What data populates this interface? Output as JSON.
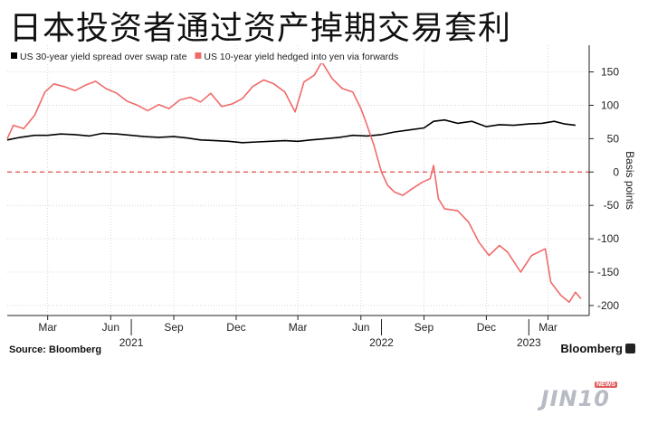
{
  "headline": "日本投资者通过资产掉期交易套利",
  "source": "Source: Bloomberg",
  "brand": "Bloomberg",
  "watermark": {
    "text": "JIN10",
    "tag": "NEWS"
  },
  "chart_data": {
    "type": "line",
    "ylabel": "Basis points",
    "ylim": [
      -215,
      190
    ],
    "yticks": [
      150,
      100,
      50,
      0,
      -50,
      -100,
      -150,
      -200
    ],
    "xlim": [
      "2021-01-01",
      "2023-04-30"
    ],
    "x_month_ticks": [
      {
        "label": "Mar",
        "date": "2021-03-01"
      },
      {
        "label": "Jun",
        "date": "2021-06-01"
      },
      {
        "label": "Sep",
        "date": "2021-09-01"
      },
      {
        "label": "Dec",
        "date": "2021-12-01"
      },
      {
        "label": "Mar",
        "date": "2022-03-01"
      },
      {
        "label": "Jun",
        "date": "2022-06-01"
      },
      {
        "label": "Sep",
        "date": "2022-09-01"
      },
      {
        "label": "Dec",
        "date": "2022-12-01"
      },
      {
        "label": "Mar",
        "date": "2023-03-01"
      }
    ],
    "x_year_ticks": [
      {
        "label": "2021",
        "date": "2021-07-01"
      },
      {
        "label": "2022",
        "date": "2022-07-01"
      },
      {
        "label": "2023",
        "date": "2023-02-01"
      }
    ],
    "reference_line": {
      "y": 0,
      "color": "#e05050",
      "style": "dashed"
    },
    "grid": true,
    "legend_position": "top-left",
    "series": [
      {
        "name": "US 30-year yield spread over swap rate",
        "color": "#000000",
        "points": [
          [
            "2021-01-01",
            48
          ],
          [
            "2021-01-20",
            52
          ],
          [
            "2021-02-10",
            55
          ],
          [
            "2021-03-01",
            55
          ],
          [
            "2021-03-20",
            57
          ],
          [
            "2021-04-10",
            56
          ],
          [
            "2021-05-01",
            54
          ],
          [
            "2021-05-20",
            58
          ],
          [
            "2021-06-10",
            57
          ],
          [
            "2021-07-01",
            55
          ],
          [
            "2021-07-20",
            53
          ],
          [
            "2021-08-10",
            52
          ],
          [
            "2021-09-01",
            53
          ],
          [
            "2021-09-20",
            51
          ],
          [
            "2021-10-10",
            48
          ],
          [
            "2021-11-01",
            47
          ],
          [
            "2021-11-20",
            46
          ],
          [
            "2021-12-10",
            44
          ],
          [
            "2022-01-01",
            45
          ],
          [
            "2022-01-20",
            46
          ],
          [
            "2022-02-10",
            47
          ],
          [
            "2022-03-01",
            46
          ],
          [
            "2022-03-20",
            48
          ],
          [
            "2022-04-10",
            50
          ],
          [
            "2022-05-01",
            52
          ],
          [
            "2022-05-20",
            55
          ],
          [
            "2022-06-10",
            54
          ],
          [
            "2022-07-01",
            56
          ],
          [
            "2022-07-20",
            60
          ],
          [
            "2022-08-10",
            63
          ],
          [
            "2022-09-01",
            66
          ],
          [
            "2022-09-15",
            76
          ],
          [
            "2022-10-01",
            78
          ],
          [
            "2022-10-20",
            73
          ],
          [
            "2022-11-10",
            76
          ],
          [
            "2022-12-01",
            68
          ],
          [
            "2022-12-20",
            71
          ],
          [
            "2023-01-10",
            70
          ],
          [
            "2023-02-01",
            72
          ],
          [
            "2023-02-20",
            73
          ],
          [
            "2023-03-10",
            76
          ],
          [
            "2023-03-25",
            72
          ],
          [
            "2023-04-10",
            70
          ]
        ]
      },
      {
        "name": "US 10-year yield hedged into yen via forwards",
        "color": "#f06a6a",
        "points": [
          [
            "2021-01-01",
            50
          ],
          [
            "2021-01-10",
            70
          ],
          [
            "2021-01-25",
            65
          ],
          [
            "2021-02-10",
            85
          ],
          [
            "2021-02-25",
            120
          ],
          [
            "2021-03-10",
            132
          ],
          [
            "2021-03-25",
            128
          ],
          [
            "2021-04-10",
            122
          ],
          [
            "2021-04-25",
            130
          ],
          [
            "2021-05-10",
            136
          ],
          [
            "2021-05-25",
            125
          ],
          [
            "2021-06-10",
            118
          ],
          [
            "2021-06-25",
            106
          ],
          [
            "2021-07-10",
            100
          ],
          [
            "2021-07-25",
            92
          ],
          [
            "2021-08-10",
            101
          ],
          [
            "2021-08-25",
            95
          ],
          [
            "2021-09-10",
            108
          ],
          [
            "2021-09-25",
            112
          ],
          [
            "2021-10-10",
            105
          ],
          [
            "2021-10-25",
            118
          ],
          [
            "2021-11-10",
            98
          ],
          [
            "2021-11-25",
            102
          ],
          [
            "2021-12-10",
            110
          ],
          [
            "2021-12-25",
            128
          ],
          [
            "2022-01-10",
            138
          ],
          [
            "2022-01-25",
            132
          ],
          [
            "2022-02-10",
            120
          ],
          [
            "2022-02-25",
            90
          ],
          [
            "2022-03-10",
            135
          ],
          [
            "2022-03-25",
            145
          ],
          [
            "2022-04-05",
            165
          ],
          [
            "2022-04-20",
            140
          ],
          [
            "2022-05-05",
            125
          ],
          [
            "2022-05-20",
            120
          ],
          [
            "2022-06-01",
            95
          ],
          [
            "2022-06-10",
            70
          ],
          [
            "2022-06-20",
            40
          ],
          [
            "2022-07-01",
            0
          ],
          [
            "2022-07-10",
            -20
          ],
          [
            "2022-07-20",
            -30
          ],
          [
            "2022-08-01",
            -35
          ],
          [
            "2022-08-15",
            -25
          ],
          [
            "2022-08-30",
            -15
          ],
          [
            "2022-09-10",
            -10
          ],
          [
            "2022-09-15",
            10
          ],
          [
            "2022-09-22",
            -40
          ],
          [
            "2022-10-01",
            -55
          ],
          [
            "2022-10-20",
            -58
          ],
          [
            "2022-11-05",
            -75
          ],
          [
            "2022-11-20",
            -105
          ],
          [
            "2022-12-05",
            -125
          ],
          [
            "2022-12-20",
            -110
          ],
          [
            "2023-01-01",
            -120
          ],
          [
            "2023-01-20",
            -150
          ],
          [
            "2023-02-05",
            -125
          ],
          [
            "2023-02-25",
            -115
          ],
          [
            "2023-03-05",
            -165
          ],
          [
            "2023-03-20",
            -185
          ],
          [
            "2023-04-01",
            -195
          ],
          [
            "2023-04-10",
            -180
          ],
          [
            "2023-04-18",
            -190
          ]
        ]
      }
    ]
  }
}
